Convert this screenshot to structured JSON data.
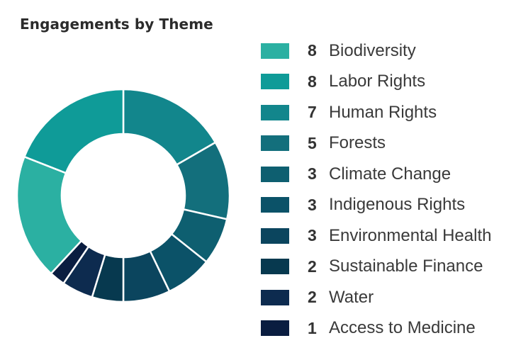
{
  "chart_data": {
    "type": "pie",
    "title": "Engagements by Theme",
    "donut": true,
    "legend_position": "right",
    "series": [
      {
        "name": "Biodiversity",
        "value": 8,
        "color": "#2bb0a2"
      },
      {
        "name": "Labor Rights",
        "value": 8,
        "color": "#0f9b98"
      },
      {
        "name": "Human Rights",
        "value": 7,
        "color": "#12868c"
      },
      {
        "name": "Forests",
        "value": 5,
        "color": "#136f7c"
      },
      {
        "name": "Climate Change",
        "value": 3,
        "color": "#0e5f70"
      },
      {
        "name": "Indigenous Rights",
        "value": 3,
        "color": "#0b5268"
      },
      {
        "name": "Environmental Health",
        "value": 3,
        "color": "#0b455e"
      },
      {
        "name": "Sustainable Finance",
        "value": 2,
        "color": "#07394f"
      },
      {
        "name": "Water",
        "value": 2,
        "color": "#0d2b4f"
      },
      {
        "name": "Access to Medicine",
        "value": 1,
        "color": "#0a1d40"
      }
    ]
  }
}
